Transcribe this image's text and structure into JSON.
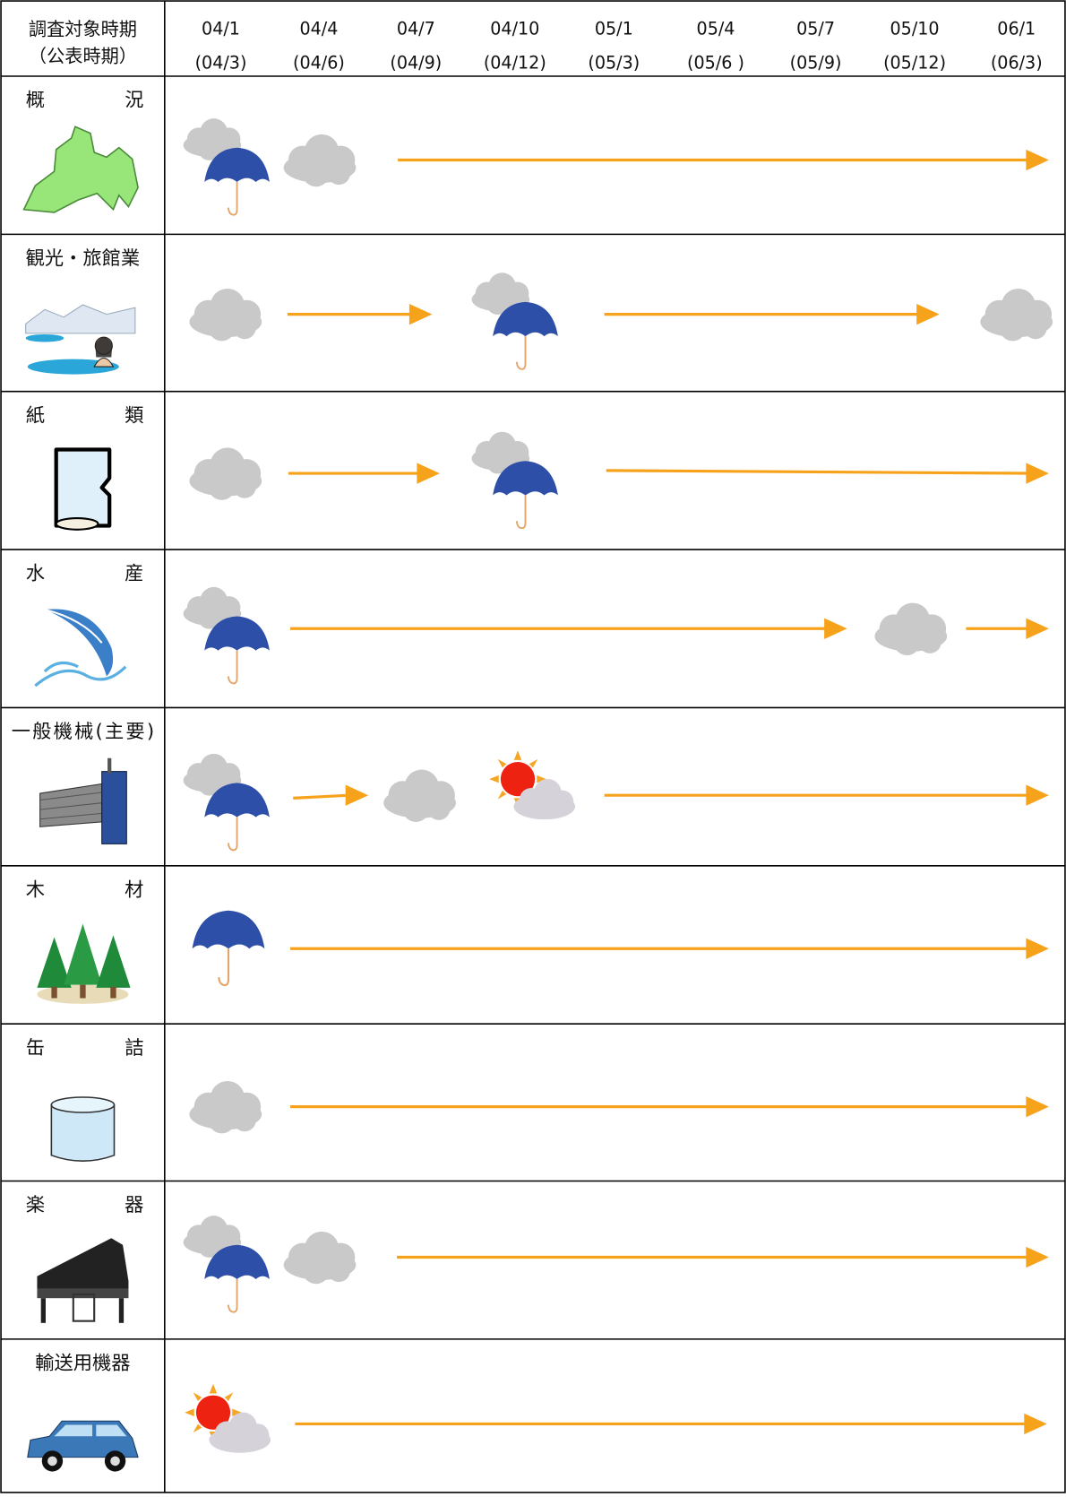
{
  "header": {
    "label": [
      "調査対象時期",
      "（公表時期）"
    ],
    "periods": [
      {
        "date": "04/1",
        "published": "(04/3)"
      },
      {
        "date": "04/4",
        "published": "(04/6)"
      },
      {
        "date": "04/7",
        "published": "(04/9)"
      },
      {
        "date": "04/10",
        "published": "(04/12)"
      },
      {
        "date": "05/1",
        "published": "(05/3)"
      },
      {
        "date": "05/4",
        "published": "(05/6 )"
      },
      {
        "date": "05/7",
        "published": "(05/9)"
      },
      {
        "date": "05/10",
        "published": "(05/12)"
      },
      {
        "date": "06/1",
        "published": "(06/3)"
      }
    ]
  },
  "rows": [
    {
      "label": "概況"
    },
    {
      "label": "観光・旅館業"
    },
    {
      "label": "紙類"
    },
    {
      "label": "水産"
    },
    {
      "label": "一般機械(主要)"
    },
    {
      "label": "木材"
    },
    {
      "label": "缶詰"
    },
    {
      "label": "楽器"
    },
    {
      "label": "輸送用機器"
    }
  ]
}
